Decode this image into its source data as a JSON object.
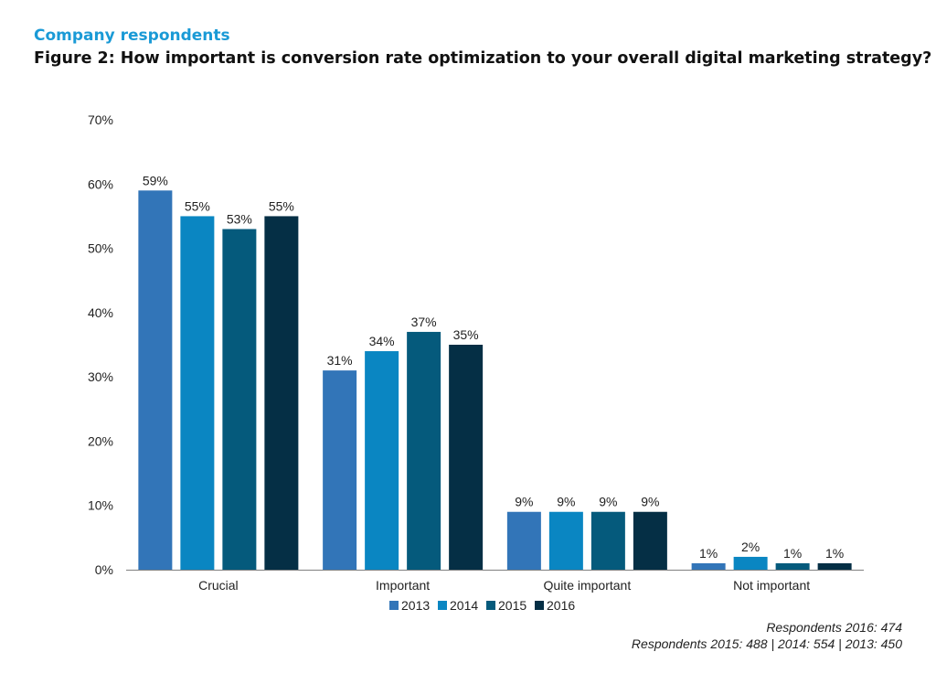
{
  "header": {
    "subtitle": "Company respondents",
    "title": "Figure 2: How important is conversion rate optimization to your overall digital marketing strategy?"
  },
  "footnotes": {
    "line1": "Respondents 2016: 474",
    "line2": "Respondents 2015: 488 | 2014: 554 | 2013: 450"
  },
  "chart_data": {
    "type": "bar",
    "title": "Figure 2: How important is conversion rate optimization to your overall digital marketing strategy?",
    "subtitle": "Company respondents",
    "categories": [
      "Crucial",
      "Important",
      "Quite important",
      "Not important"
    ],
    "series": [
      {
        "name": "2013",
        "values": [
          59,
          31,
          9,
          1
        ],
        "color": "#3275b8"
      },
      {
        "name": "2014",
        "values": [
          55,
          34,
          9,
          2
        ],
        "color": "#0a86c2"
      },
      {
        "name": "2015",
        "values": [
          53,
          37,
          9,
          1
        ],
        "color": "#055a7c"
      },
      {
        "name": "2016",
        "values": [
          55,
          35,
          9,
          1
        ],
        "color": "#052f45"
      }
    ],
    "value_suffix": "%",
    "ylim": [
      0,
      70
    ],
    "yticks": [
      0,
      10,
      20,
      30,
      40,
      50,
      60,
      70
    ],
    "ytick_labels": [
      "0%",
      "10%",
      "20%",
      "30%",
      "40%",
      "50%",
      "60%",
      "70%"
    ],
    "xlabel": "",
    "ylabel": "",
    "grid": false,
    "legend_position": "bottom-center"
  }
}
